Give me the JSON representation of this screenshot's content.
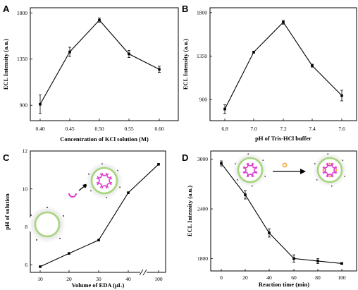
{
  "chart_data": [
    {
      "panel": "A",
      "type": "line",
      "xlabel": "Concentration of KCl solution (M)",
      "ylabel": "ECL Intensity (a.u.)",
      "x": [
        "0.40",
        "0.45",
        "0.50",
        "0.55",
        "0.60"
      ],
      "values": [
        910,
        1420,
        1730,
        1400,
        1250
      ],
      "errors": [
        90,
        45,
        20,
        35,
        30
      ],
      "yticks": [
        "900",
        "1350",
        "1800"
      ],
      "ylim": [
        750,
        1850
      ]
    },
    {
      "panel": "B",
      "type": "line",
      "xlabel": "pH of Tris-HCl buffer",
      "ylabel": "ECL Intensity (a.u.)",
      "x": [
        "6.8",
        "7.0",
        "7.2",
        "7.4",
        "7.6"
      ],
      "values": [
        800,
        1390,
        1700,
        1250,
        940
      ],
      "errors": [
        45,
        10,
        20,
        15,
        55
      ],
      "yticks": [
        "900",
        "1350",
        "1800"
      ],
      "ylim": [
        680,
        1850
      ]
    },
    {
      "panel": "C",
      "type": "line",
      "xlabel": "Volume of EDA (μL)",
      "ylabel": "pH of solution",
      "x": [
        "10",
        "20",
        "30",
        "40",
        "100"
      ],
      "values": [
        5.9,
        6.6,
        7.3,
        9.8,
        11.3
      ],
      "errors": [
        0,
        0,
        0,
        0,
        0
      ],
      "yticks": [
        "6",
        "8",
        "10",
        "12"
      ],
      "ylim": [
        5.6,
        12
      ],
      "axis_break": true
    },
    {
      "panel": "D",
      "type": "line",
      "xlabel": "Reaction time (min)",
      "ylabel": "ECL Intensity (a.u.)",
      "x": [
        "0",
        "20",
        "40",
        "60",
        "80",
        "100"
      ],
      "values": [
        2950,
        2570,
        2110,
        1800,
        1770,
        1740
      ],
      "errors": [
        30,
        50,
        50,
        45,
        30,
        10
      ],
      "yticks": [
        "1800",
        "2400",
        "3000"
      ],
      "ylim": [
        1650,
        3100
      ]
    }
  ]
}
